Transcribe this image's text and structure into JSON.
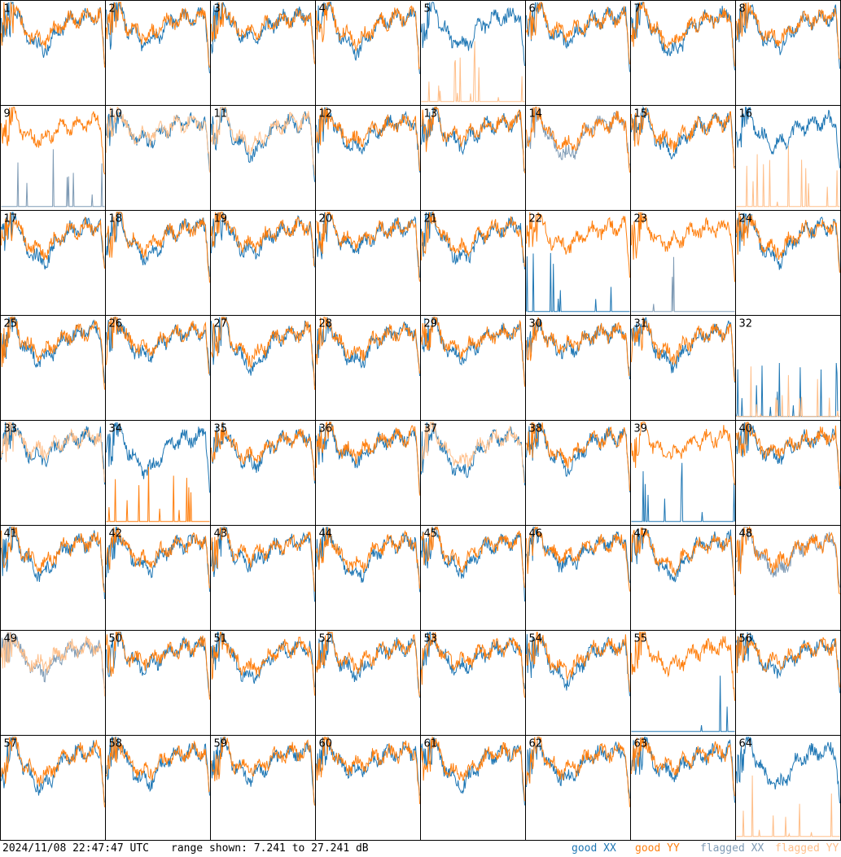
{
  "chart_data": {
    "type": "line",
    "panel_count": 64,
    "panel_labels": [
      "1",
      "2",
      "3",
      "4",
      "5",
      "6",
      "7",
      "8",
      "9",
      "10",
      "11",
      "12",
      "13",
      "14",
      "15",
      "16",
      "17",
      "18",
      "19",
      "20",
      "21",
      "22",
      "23",
      "24",
      "25",
      "26",
      "27",
      "28",
      "29",
      "30",
      "31",
      "32",
      "33",
      "34",
      "35",
      "36",
      "37",
      "38",
      "39",
      "40",
      "41",
      "42",
      "43",
      "44",
      "45",
      "46",
      "47",
      "48",
      "49",
      "50",
      "51",
      "52",
      "53",
      "54",
      "55",
      "56",
      "57",
      "58",
      "59",
      "60",
      "61",
      "62",
      "63",
      "64"
    ],
    "ylim": [
      7.241,
      27.241
    ],
    "yunit": "dB",
    "grid": false,
    "legend": {
      "placement": "bottom-right",
      "entries": [
        {
          "label": "good XX",
          "color": "#1f77b4"
        },
        {
          "label": "good YY",
          "color": "#ff7f0e"
        },
        {
          "label": "flagged XX",
          "color": "#7f9bb5"
        },
        {
          "label": "flagged YY",
          "color": "#ffbf8a"
        }
      ]
    },
    "flagged_xx_panels": [
      9,
      14,
      23,
      48,
      49
    ],
    "flagged_yy_panels": [
      5,
      10,
      11,
      16,
      32,
      33,
      37,
      49,
      64
    ],
    "low_signal_xx_panels": [
      9,
      22,
      23,
      32,
      39,
      55
    ],
    "low_signal_yy_panels": [
      5,
      16,
      32,
      34,
      64
    ]
  },
  "footer": {
    "timestamp": "2024/11/08 22:47:47 UTC",
    "range_text": "range shown: 7.241 to 27.241 dB"
  }
}
